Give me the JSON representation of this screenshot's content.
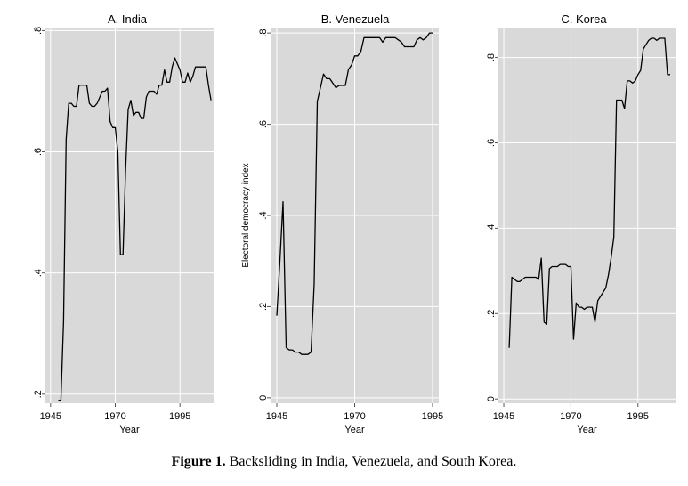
{
  "figure": {
    "caption_label": "Figure 1.",
    "caption_text": "Backsliding in India, Venezuela, and South Korea."
  },
  "chart_data": [
    {
      "type": "line",
      "title": "A. India",
      "xlabel": "Year",
      "ylabel": "",
      "xlim": [
        1943,
        2008
      ],
      "ylim": [
        0.185,
        0.805
      ],
      "xticks": [
        1945,
        1970,
        1995
      ],
      "xtick_labels": [
        "1945",
        "1970",
        "1995"
      ],
      "yticks": [
        0.2,
        0.4,
        0.6,
        0.8
      ],
      "ytick_labels": [
        ".2",
        ".4",
        ".6",
        ".8"
      ],
      "grid": true,
      "series": [
        {
          "x": [
            1948,
            1949,
            1950,
            1951,
            1952,
            1953,
            1954,
            1955,
            1956,
            1957,
            1958,
            1959,
            1960,
            1961,
            1962,
            1963,
            1964,
            1965,
            1966,
            1967,
            1968,
            1969,
            1970,
            1971,
            1972,
            1973,
            1974,
            1975,
            1976,
            1977,
            1978,
            1979,
            1980,
            1981,
            1982,
            1983,
            1984,
            1985,
            1986,
            1987,
            1988,
            1989,
            1990,
            1991,
            1992,
            1993,
            1994,
            1995,
            1996,
            1997,
            1998,
            1999,
            2000,
            2001,
            2002,
            2003,
            2004,
            2005,
            2006,
            2007
          ],
          "y": [
            0.19,
            0.19,
            0.32,
            0.62,
            0.68,
            0.68,
            0.675,
            0.675,
            0.71,
            0.71,
            0.71,
            0.71,
            0.68,
            0.675,
            0.675,
            0.68,
            0.69,
            0.7,
            0.7,
            0.705,
            0.65,
            0.64,
            0.64,
            0.6,
            0.43,
            0.43,
            0.57,
            0.67,
            0.685,
            0.66,
            0.665,
            0.665,
            0.655,
            0.655,
            0.69,
            0.7,
            0.7,
            0.7,
            0.695,
            0.71,
            0.71,
            0.735,
            0.715,
            0.715,
            0.74,
            0.755,
            0.745,
            0.735,
            0.715,
            0.715,
            0.73,
            0.715,
            0.725,
            0.74,
            0.74,
            0.74,
            0.74,
            0.74,
            0.71,
            0.685
          ]
        }
      ]
    },
    {
      "type": "line",
      "title": "B. Venezuela",
      "xlabel": "Year",
      "ylabel": "Electoral democracy index",
      "xlim": [
        1943,
        1997
      ],
      "ylim": [
        -0.012,
        0.812
      ],
      "xticks": [
        1945,
        1970,
        1995
      ],
      "xtick_labels": [
        "1945",
        "1970",
        "1995"
      ],
      "yticks": [
        0,
        0.2,
        0.4,
        0.6,
        0.8
      ],
      "ytick_labels": [
        "0",
        ".2",
        ".4",
        ".6",
        ".8"
      ],
      "grid": true,
      "series": [
        {
          "x": [
            1945,
            1946,
            1947,
            1948,
            1949,
            1950,
            1951,
            1952,
            1953,
            1954,
            1955,
            1956,
            1957,
            1958,
            1959,
            1960,
            1961,
            1962,
            1963,
            1964,
            1965,
            1966,
            1967,
            1968,
            1969,
            1970,
            1971,
            1972,
            1973,
            1974,
            1975,
            1976,
            1977,
            1978,
            1979,
            1980,
            1981,
            1982,
            1983,
            1984,
            1985,
            1986,
            1987,
            1988,
            1989,
            1990,
            1991,
            1992,
            1993,
            1994,
            1995
          ],
          "y": [
            0.18,
            0.3,
            0.43,
            0.11,
            0.105,
            0.105,
            0.1,
            0.1,
            0.095,
            0.095,
            0.095,
            0.1,
            0.25,
            0.65,
            0.68,
            0.71,
            0.7,
            0.7,
            0.69,
            0.68,
            0.685,
            0.685,
            0.685,
            0.72,
            0.73,
            0.75,
            0.75,
            0.76,
            0.79,
            0.79,
            0.79,
            0.79,
            0.79,
            0.79,
            0.78,
            0.79,
            0.79,
            0.79,
            0.79,
            0.785,
            0.78,
            0.77,
            0.77,
            0.77,
            0.77,
            0.785,
            0.79,
            0.785,
            0.79,
            0.8,
            0.8
          ]
        }
      ]
    },
    {
      "type": "line",
      "title": "C. Korea",
      "xlabel": "Year",
      "ylabel": "",
      "xlim": [
        1943,
        2009
      ],
      "ylim": [
        -0.01,
        0.87
      ],
      "xticks": [
        1945,
        1970,
        1995
      ],
      "xtick_labels": [
        "1945",
        "1970",
        "1995"
      ],
      "yticks": [
        0,
        0.2,
        0.4,
        0.6,
        0.8
      ],
      "ytick_labels": [
        "0",
        ".2",
        ".4",
        ".6",
        ".8"
      ],
      "grid": true,
      "series": [
        {
          "x": [
            1947,
            1948,
            1949,
            1950,
            1951,
            1952,
            1953,
            1954,
            1955,
            1956,
            1957,
            1958,
            1959,
            1960,
            1961,
            1962,
            1963,
            1964,
            1965,
            1966,
            1967,
            1968,
            1969,
            1970,
            1971,
            1972,
            1973,
            1974,
            1975,
            1976,
            1977,
            1978,
            1979,
            1980,
            1981,
            1982,
            1983,
            1984,
            1985,
            1986,
            1987,
            1988,
            1989,
            1990,
            1991,
            1992,
            1993,
            1994,
            1995,
            1996,
            1997,
            1998,
            1999,
            2000,
            2001,
            2002,
            2003,
            2004,
            2005,
            2006,
            2007
          ],
          "y": [
            0.12,
            0.285,
            0.28,
            0.275,
            0.275,
            0.28,
            0.285,
            0.285,
            0.285,
            0.285,
            0.285,
            0.28,
            0.33,
            0.18,
            0.175,
            0.305,
            0.31,
            0.31,
            0.31,
            0.315,
            0.315,
            0.315,
            0.31,
            0.31,
            0.14,
            0.225,
            0.215,
            0.215,
            0.21,
            0.215,
            0.215,
            0.215,
            0.18,
            0.23,
            0.24,
            0.25,
            0.26,
            0.29,
            0.33,
            0.38,
            0.7,
            0.7,
            0.7,
            0.68,
            0.745,
            0.745,
            0.74,
            0.745,
            0.76,
            0.77,
            0.82,
            0.83,
            0.84,
            0.845,
            0.845,
            0.84,
            0.845,
            0.845,
            0.845,
            0.76,
            0.76
          ]
        }
      ]
    }
  ]
}
